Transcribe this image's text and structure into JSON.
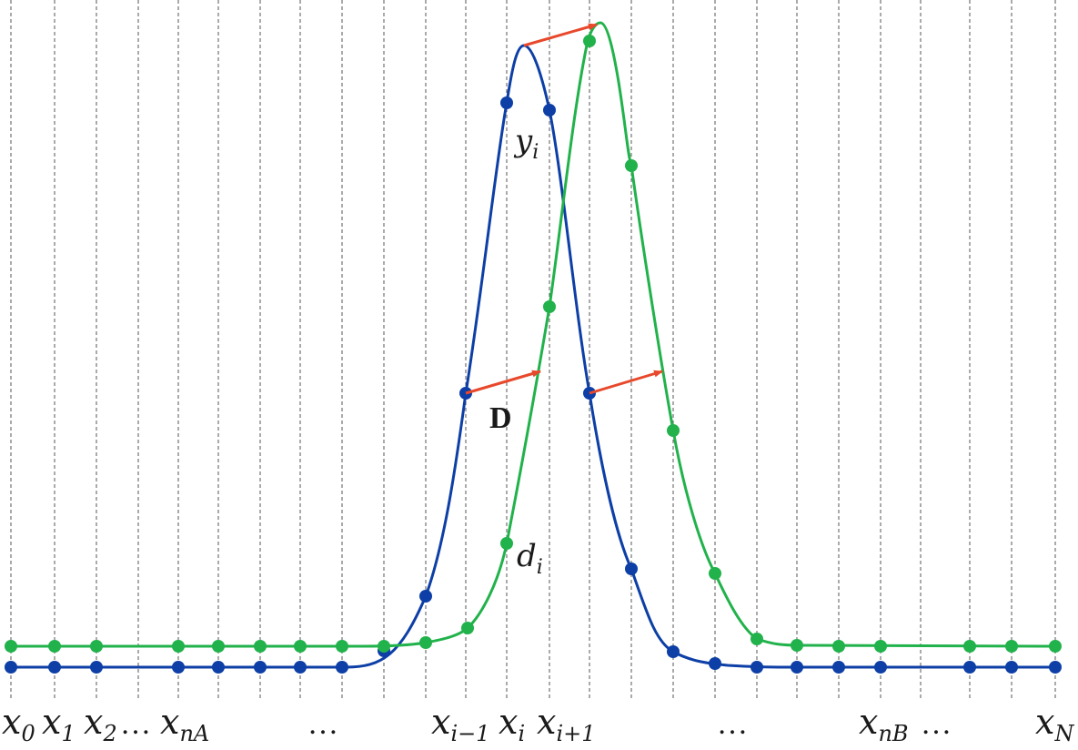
{
  "colors": {
    "blue_curve": "#0d3fa6",
    "green_curve": "#21b24b",
    "arrow": "#e8482b",
    "gridline": "#555555"
  },
  "labels": {
    "blue_curve": {
      "main": "y",
      "sub": "i"
    },
    "green_curve": {
      "main": "d",
      "sub": "i"
    },
    "displacement": "D"
  },
  "x_axis_labels": [
    {
      "main": "x",
      "sub": "0"
    },
    {
      "main": "x",
      "sub": "1"
    },
    {
      "main": "x",
      "sub": "2"
    },
    {
      "text": "…"
    },
    {
      "main": "x",
      "sub": "nA"
    },
    {
      "text": "…"
    },
    {
      "main": "x",
      "sub": "i−1"
    },
    {
      "main": "x",
      "sub": "i"
    },
    {
      "main": "x",
      "sub": "i+1"
    },
    {
      "text": "…"
    },
    {
      "main": "x",
      "sub": "nB"
    },
    {
      "text": "…"
    },
    {
      "main": "x",
      "sub": "N"
    }
  ]
}
